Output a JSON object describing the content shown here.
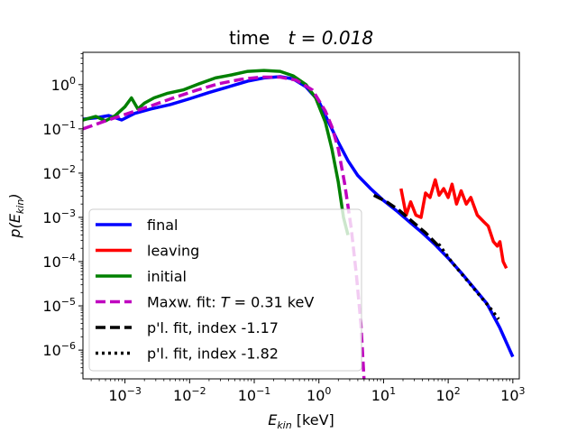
{
  "chart_data": {
    "type": "line",
    "title_prefix": "time",
    "title_var": "t = 0.018",
    "xlabel_base": "E",
    "xlabel_sub": "kin",
    "xlabel_unit": " [keV]",
    "ylabel_pre": "p(E",
    "ylabel_sub": "kin",
    "ylabel_post": ")",
    "x_scale": "log",
    "y_scale": "log",
    "xlim_exp": [
      -3.65,
      3.1
    ],
    "ylim_exp": [
      -6.65,
      0.73
    ],
    "x_ticks": [
      {
        "exp": -3,
        "base": "10",
        "sup": "−3"
      },
      {
        "exp": -2,
        "base": "10",
        "sup": "−2"
      },
      {
        "exp": -1,
        "base": "10",
        "sup": "−1"
      },
      {
        "exp": 0,
        "base": "10",
        "sup": "0"
      },
      {
        "exp": 1,
        "base": "10",
        "sup": "1"
      },
      {
        "exp": 2,
        "base": "10",
        "sup": "2"
      },
      {
        "exp": 3,
        "base": "10",
        "sup": "3"
      }
    ],
    "y_ticks": [
      {
        "exp": 0,
        "base": "10",
        "sup": "0"
      },
      {
        "exp": -1,
        "base": "10",
        "sup": "−1"
      },
      {
        "exp": -2,
        "base": "10",
        "sup": "−2"
      },
      {
        "exp": -3,
        "base": "10",
        "sup": "−3"
      },
      {
        "exp": -4,
        "base": "10",
        "sup": "−4"
      },
      {
        "exp": -5,
        "base": "10",
        "sup": "−5"
      },
      {
        "exp": -6,
        "base": "10",
        "sup": "−6"
      }
    ],
    "series": [
      {
        "name": "final",
        "label": "final",
        "color": "#0000ff",
        "style": "solid",
        "points_log10": [
          [
            -3.65,
            -0.78
          ],
          [
            -3.45,
            -0.75
          ],
          [
            -3.25,
            -0.7
          ],
          [
            -3.05,
            -0.8
          ],
          [
            -2.85,
            -0.65
          ],
          [
            -2.6,
            -0.55
          ],
          [
            -2.3,
            -0.45
          ],
          [
            -2.0,
            -0.32
          ],
          [
            -1.7,
            -0.18
          ],
          [
            -1.4,
            -0.05
          ],
          [
            -1.1,
            0.08
          ],
          [
            -0.85,
            0.15
          ],
          [
            -0.6,
            0.18
          ],
          [
            -0.4,
            0.13
          ],
          [
            -0.2,
            -0.05
          ],
          [
            0.0,
            -0.38
          ],
          [
            0.15,
            -0.85
          ],
          [
            0.3,
            -1.3
          ],
          [
            0.45,
            -1.72
          ],
          [
            0.6,
            -2.05
          ],
          [
            0.8,
            -2.35
          ],
          [
            1.0,
            -2.62
          ],
          [
            1.2,
            -2.85
          ],
          [
            1.4,
            -3.1
          ],
          [
            1.6,
            -3.35
          ],
          [
            1.8,
            -3.62
          ],
          [
            2.0,
            -3.92
          ],
          [
            2.2,
            -4.25
          ],
          [
            2.4,
            -4.6
          ],
          [
            2.6,
            -4.95
          ],
          [
            2.8,
            -5.5
          ],
          [
            3.0,
            -6.15
          ]
        ]
      },
      {
        "name": "leaving",
        "label": "leaving",
        "color": "#ff0000",
        "style": "solid",
        "points_log10": [
          [
            1.27,
            -2.35
          ],
          [
            1.35,
            -2.95
          ],
          [
            1.42,
            -2.65
          ],
          [
            1.5,
            -2.95
          ],
          [
            1.58,
            -3.0
          ],
          [
            1.65,
            -2.45
          ],
          [
            1.72,
            -2.55
          ],
          [
            1.8,
            -2.15
          ],
          [
            1.86,
            -2.5
          ],
          [
            1.93,
            -2.35
          ],
          [
            2.0,
            -2.55
          ],
          [
            2.06,
            -2.25
          ],
          [
            2.13,
            -2.7
          ],
          [
            2.2,
            -2.4
          ],
          [
            2.28,
            -2.7
          ],
          [
            2.35,
            -2.55
          ],
          [
            2.45,
            -2.95
          ],
          [
            2.55,
            -3.1
          ],
          [
            2.62,
            -3.2
          ],
          [
            2.7,
            -3.55
          ],
          [
            2.76,
            -3.65
          ],
          [
            2.8,
            -3.55
          ],
          [
            2.85,
            -4.0
          ],
          [
            2.9,
            -4.15
          ]
        ]
      },
      {
        "name": "initial",
        "label": "initial",
        "color": "#008000",
        "style": "solid",
        "points_log10": [
          [
            -3.65,
            -0.8
          ],
          [
            -3.45,
            -0.72
          ],
          [
            -3.3,
            -0.82
          ],
          [
            -3.15,
            -0.7
          ],
          [
            -3.0,
            -0.5
          ],
          [
            -2.9,
            -0.3
          ],
          [
            -2.8,
            -0.55
          ],
          [
            -2.7,
            -0.42
          ],
          [
            -2.55,
            -0.3
          ],
          [
            -2.35,
            -0.2
          ],
          [
            -2.1,
            -0.12
          ],
          [
            -1.85,
            0.02
          ],
          [
            -1.6,
            0.15
          ],
          [
            -1.35,
            0.22
          ],
          [
            -1.1,
            0.3
          ],
          [
            -0.85,
            0.32
          ],
          [
            -0.6,
            0.3
          ],
          [
            -0.4,
            0.2
          ],
          [
            -0.2,
            0.0
          ],
          [
            -0.05,
            -0.3
          ],
          [
            0.1,
            -0.85
          ],
          [
            0.2,
            -1.45
          ],
          [
            0.3,
            -2.2
          ],
          [
            0.38,
            -3.0
          ],
          [
            0.45,
            -3.4
          ]
        ]
      },
      {
        "name": "maxwell-fit",
        "label": "Maxw. fit: T =  0.31 keV",
        "label_pre": "Maxw. fit: ",
        "label_var": "T",
        "label_post": " =  0.31 keV",
        "color": "#bf00bf",
        "style": "dashed",
        "points_log10": [
          [
            -3.65,
            -1.0
          ],
          [
            -3.3,
            -0.82
          ],
          [
            -2.95,
            -0.65
          ],
          [
            -2.6,
            -0.48
          ],
          [
            -2.25,
            -0.3
          ],
          [
            -1.9,
            -0.13
          ],
          [
            -1.55,
            0.02
          ],
          [
            -1.2,
            0.12
          ],
          [
            -0.9,
            0.17
          ],
          [
            -0.6,
            0.17
          ],
          [
            -0.35,
            0.1
          ],
          [
            -0.1,
            -0.12
          ],
          [
            0.1,
            -0.6
          ],
          [
            0.2,
            -0.95
          ],
          [
            0.3,
            -1.45
          ],
          [
            0.4,
            -2.25
          ],
          [
            0.5,
            -3.25
          ],
          [
            0.58,
            -4.3
          ],
          [
            0.65,
            -5.4
          ],
          [
            0.7,
            -6.7
          ]
        ]
      },
      {
        "name": "powerlaw-fit-1",
        "label": "p'l. fit, index -1.17",
        "color": "#000000",
        "style": "dashed",
        "points_log10": [
          [
            0.85,
            -2.5
          ],
          [
            1.05,
            -2.65
          ],
          [
            1.25,
            -2.85
          ],
          [
            1.45,
            -3.1
          ],
          [
            1.65,
            -3.35
          ],
          [
            1.85,
            -3.65
          ]
        ]
      },
      {
        "name": "powerlaw-fit-2",
        "label": "p'l. fit, index -1.82",
        "color": "#000000",
        "style": "dotted",
        "points_log10": [
          [
            1.85,
            -3.6
          ],
          [
            2.05,
            -4.0
          ],
          [
            2.25,
            -4.35
          ],
          [
            2.45,
            -4.7
          ],
          [
            2.65,
            -5.05
          ],
          [
            2.78,
            -5.3
          ]
        ]
      }
    ],
    "legend": {
      "position": "lower-left"
    }
  }
}
